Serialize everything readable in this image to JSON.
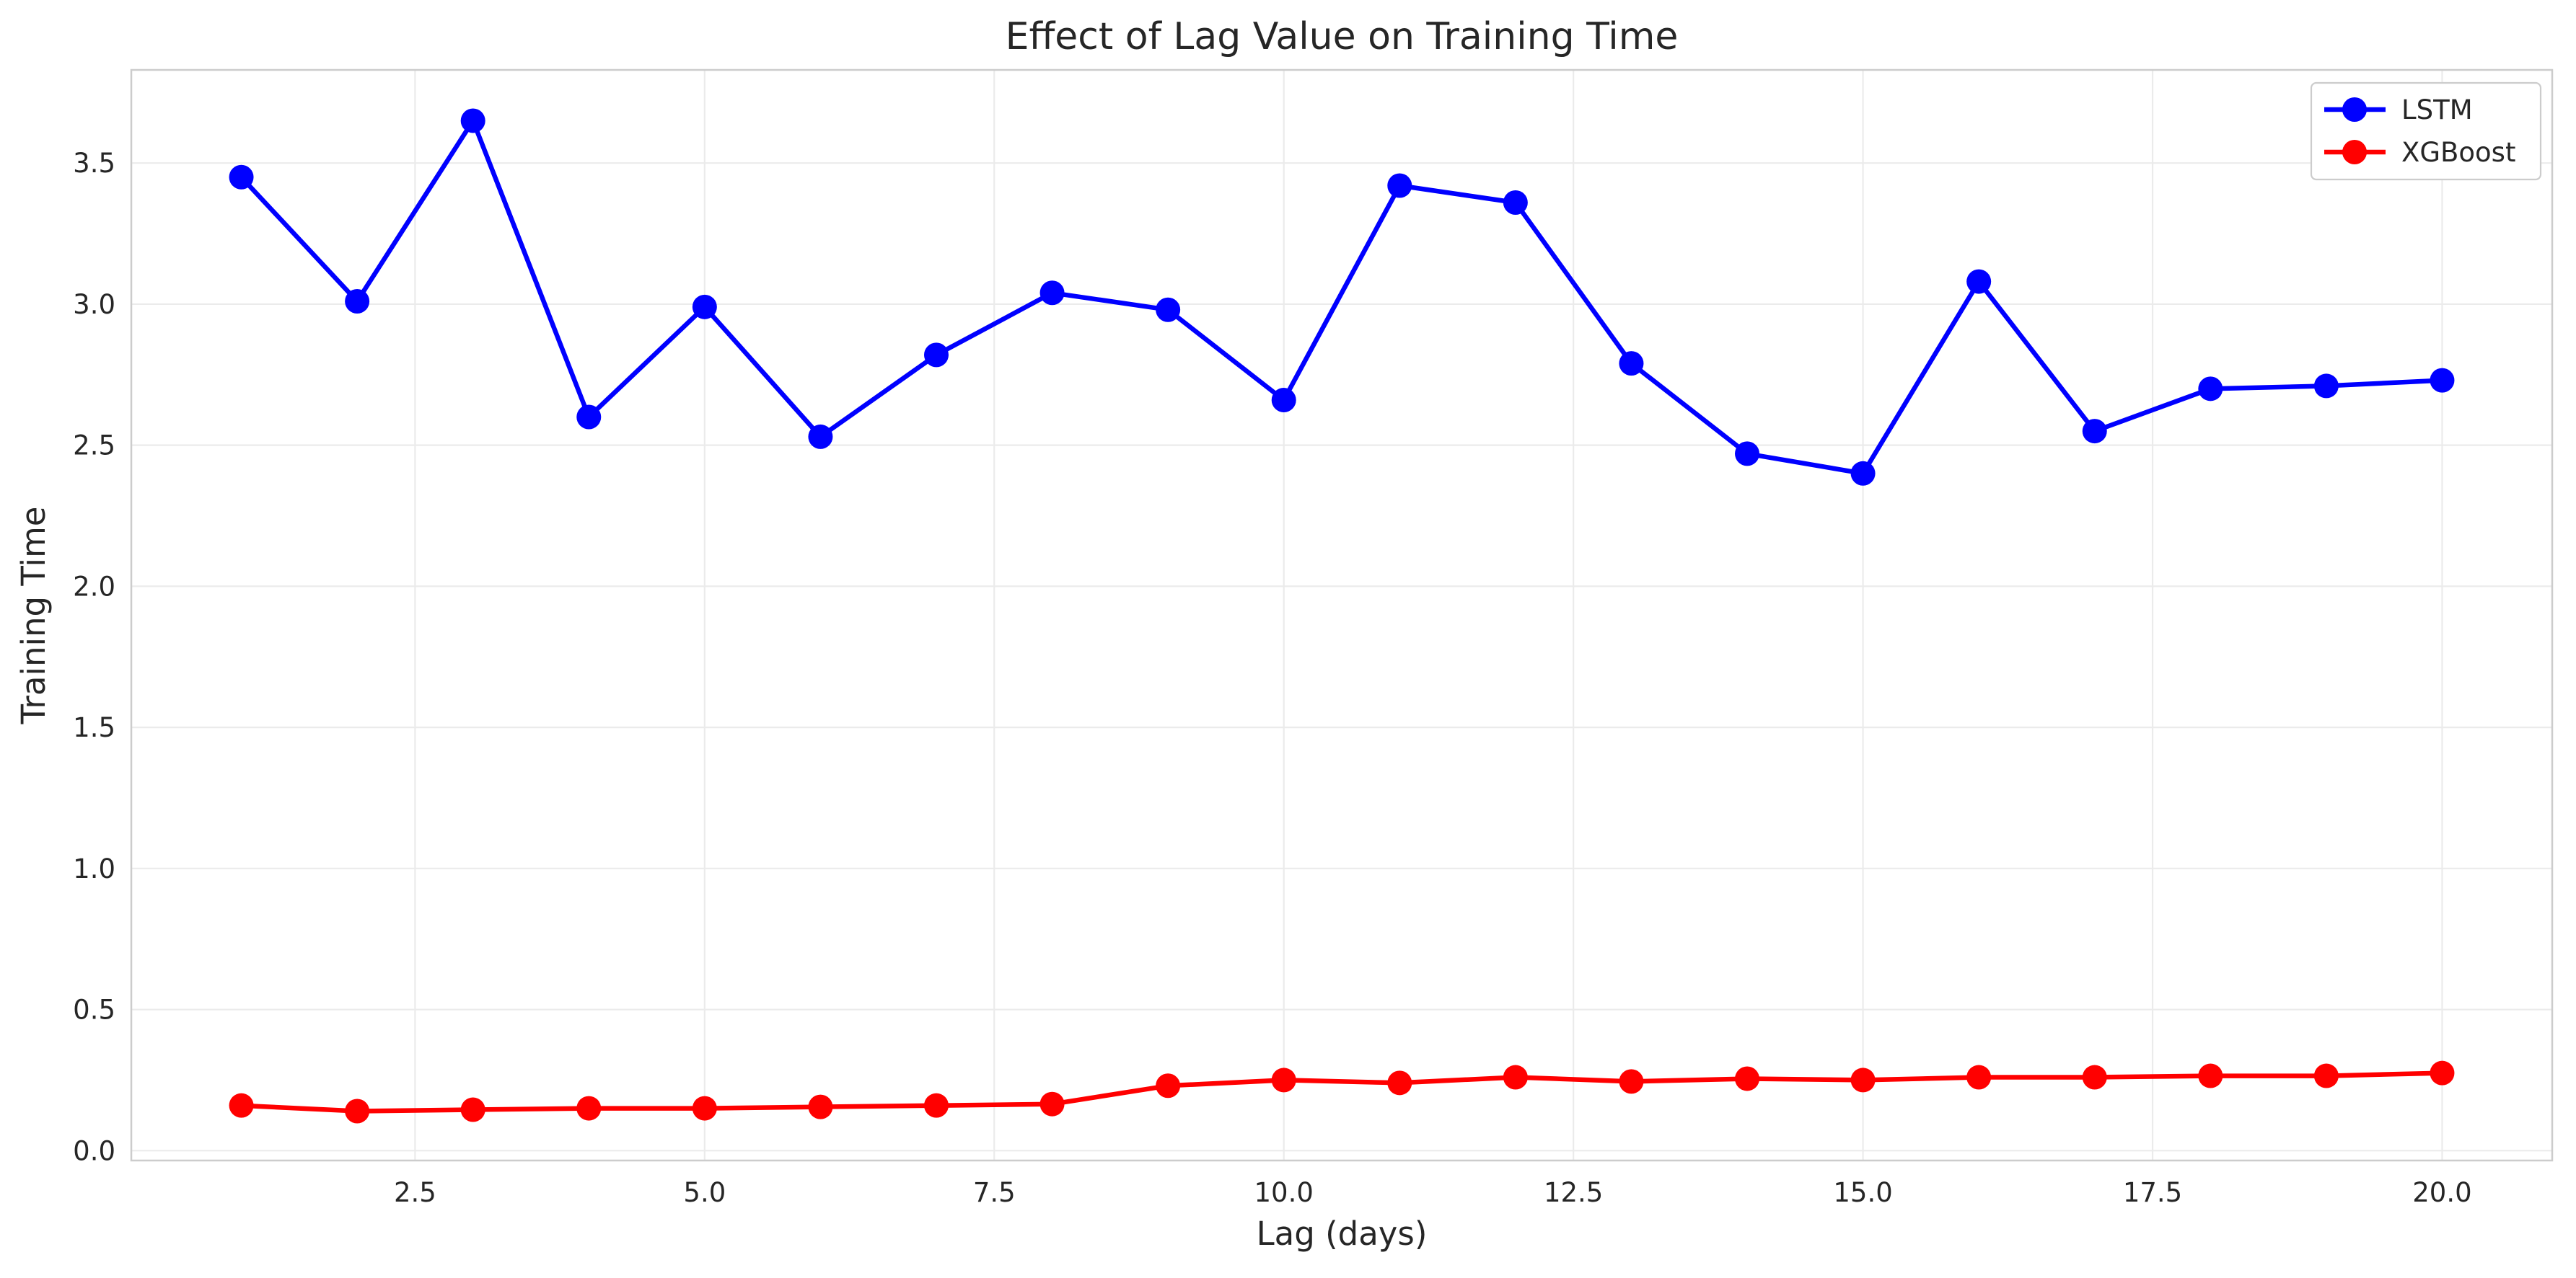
{
  "chart_data": {
    "type": "line",
    "title": "Effect of Lag Value on Training Time",
    "xlabel": "Lag (days)",
    "ylabel": "Training Time",
    "xlim": [
      0.05,
      20.95
    ],
    "ylim": [
      -0.035,
      3.83
    ],
    "x_ticks": [
      2.5,
      5.0,
      7.5,
      10.0,
      12.5,
      15.0,
      17.5,
      20.0
    ],
    "x_tick_labels": [
      "2.5",
      "5.0",
      "7.5",
      "10.0",
      "12.5",
      "15.0",
      "17.5",
      "20.0"
    ],
    "y_ticks": [
      0.0,
      0.5,
      1.0,
      1.5,
      2.0,
      2.5,
      3.0,
      3.5
    ],
    "y_tick_labels": [
      "0.0",
      "0.5",
      "1.0",
      "1.5",
      "2.0",
      "2.5",
      "3.0",
      "3.5"
    ],
    "grid": true,
    "legend_position": "top-right",
    "x": [
      1,
      2,
      3,
      4,
      5,
      6,
      7,
      8,
      9,
      10,
      11,
      12,
      13,
      14,
      15,
      16,
      17,
      18,
      19,
      20
    ],
    "series": [
      {
        "name": "LSTM",
        "color": "#0000ff",
        "marker": "circle",
        "values": [
          3.45,
          3.01,
          3.65,
          2.6,
          2.99,
          2.53,
          2.82,
          3.04,
          2.98,
          2.66,
          3.42,
          3.36,
          2.79,
          2.47,
          2.4,
          3.08,
          2.55,
          2.7,
          2.71,
          2.73
        ]
      },
      {
        "name": "XGBoost",
        "color": "#ff0000",
        "marker": "circle",
        "values": [
          0.16,
          0.14,
          0.145,
          0.15,
          0.15,
          0.155,
          0.16,
          0.165,
          0.23,
          0.25,
          0.24,
          0.26,
          0.245,
          0.255,
          0.25,
          0.26,
          0.26,
          0.265,
          0.265,
          0.275
        ]
      }
    ]
  }
}
